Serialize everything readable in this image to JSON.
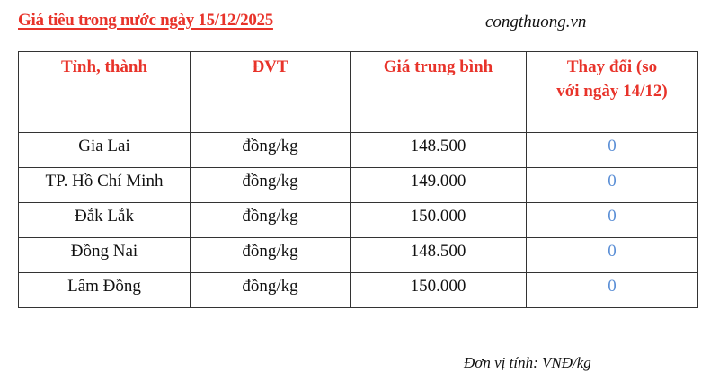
{
  "title": "Giá tiêu trong nước ngày 15/12/2025",
  "source": "congthuong.vn",
  "table": {
    "headers": [
      "Tỉnh, thành",
      "ĐVT",
      "Giá trung bình",
      "Thay đổi (so với ngày 14/12)"
    ],
    "rows": [
      {
        "province": "Gia Lai",
        "unit": "đồng/kg",
        "price": "148.500",
        "change": "0"
      },
      {
        "province": "TP. Hồ Chí Minh",
        "unit": "đồng/kg",
        "price": "149.000",
        "change": "0"
      },
      {
        "province": "Đắk Lắk",
        "unit": "đồng/kg",
        "price": "150.000",
        "change": "0"
      },
      {
        "province": "Đồng Nai",
        "unit": "đồng/kg",
        "price": "148.500",
        "change": "0"
      },
      {
        "province": "Lâm Đồng",
        "unit": "đồng/kg",
        "price": "150.000",
        "change": "0"
      }
    ]
  },
  "footnote": "Đơn vị tính: VNĐ/kg",
  "colors": {
    "header": "#e8332a",
    "change": "#5b8fd6"
  }
}
